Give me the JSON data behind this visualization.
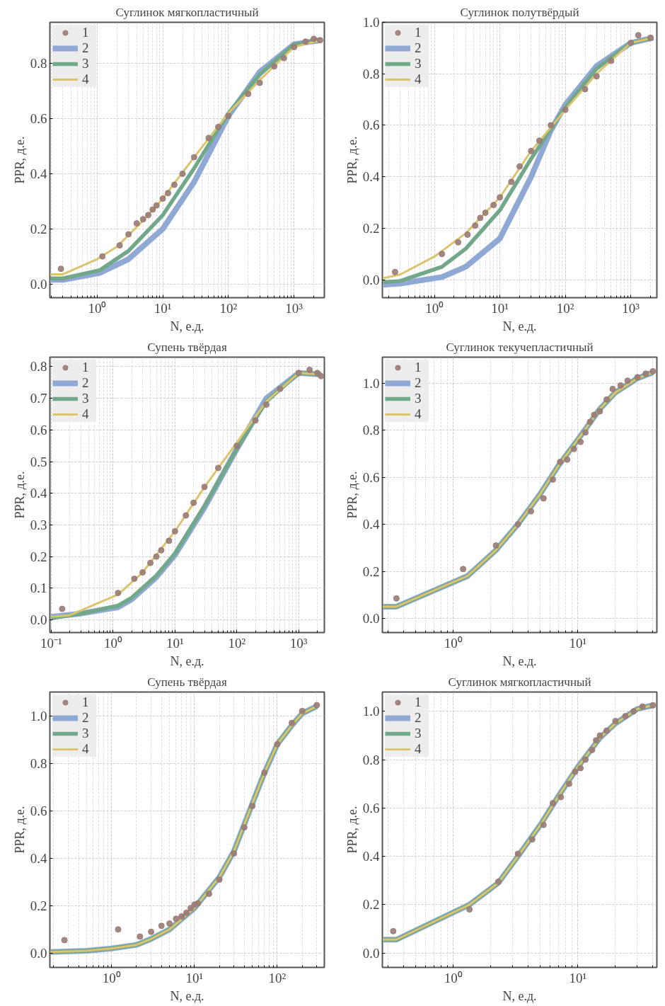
{
  "chart_data": [
    {
      "type": "line",
      "title": "Суглинок мягкопластичный",
      "xlabel": "N, е.д.",
      "ylabel": "PPR, д.е.",
      "log": "x",
      "grid": true,
      "legend": "top left",
      "xlim": [
        0.19,
        2900
      ],
      "ylim": [
        -0.05,
        0.95
      ],
      "xticks": [
        {
          "value": 1,
          "label": "10⁰"
        },
        {
          "value": 10,
          "label": "10¹"
        },
        {
          "value": 100,
          "label": "10²"
        },
        {
          "value": 1000,
          "label": "10³"
        }
      ],
      "yticks": [
        {
          "value": 0,
          "label": "0.0"
        },
        {
          "value": 0.2,
          "label": "0.2"
        },
        {
          "value": 0.4,
          "label": "0.4"
        },
        {
          "value": 0.6,
          "label": "0.6"
        },
        {
          "value": 0.8,
          "label": "0.8"
        }
      ],
      "series": [
        {
          "name": "1",
          "type": "scatter",
          "marker": "circle",
          "color": "#9a7b76",
          "x": [
            0.28,
            1.2,
            2.2,
            3,
            4,
            5,
            6,
            7,
            8,
            10,
            12,
            15,
            20,
            30,
            50,
            70,
            100,
            200,
            300,
            500,
            700,
            1000,
            1500,
            2000,
            2500
          ],
          "values": [
            0.055,
            0.1,
            0.14,
            0.18,
            0.22,
            0.235,
            0.25,
            0.27,
            0.285,
            0.31,
            0.33,
            0.36,
            0.4,
            0.46,
            0.53,
            0.57,
            0.61,
            0.69,
            0.73,
            0.79,
            0.82,
            0.86,
            0.88,
            0.89,
            0.885
          ]
        },
        {
          "name": "2",
          "color": "#8fa8d4",
          "x": [
            0.19,
            0.3,
            1.1,
            3,
            10,
            30,
            100,
            300,
            1000,
            2500
          ],
          "values": [
            0.015,
            0.015,
            0.04,
            0.09,
            0.2,
            0.37,
            0.61,
            0.77,
            0.87,
            0.885
          ]
        },
        {
          "name": "3",
          "color": "#72a88a",
          "x": [
            0.19,
            0.3,
            1.1,
            3,
            10,
            30,
            100,
            300,
            1000,
            2500
          ],
          "values": [
            0.02,
            0.02,
            0.05,
            0.12,
            0.25,
            0.42,
            0.62,
            0.76,
            0.87,
            0.885
          ]
        },
        {
          "name": "4",
          "color": "#dcc46e",
          "x": [
            0.19,
            0.3,
            1,
            2,
            5,
            10,
            30,
            100,
            300,
            1000,
            2500
          ],
          "values": [
            0.035,
            0.035,
            0.09,
            0.135,
            0.23,
            0.31,
            0.46,
            0.62,
            0.74,
            0.86,
            0.885
          ]
        }
      ]
    },
    {
      "type": "line",
      "title": "Суглинок полутвёрдый",
      "xlabel": "N, е.д.",
      "ylabel": "PPR, д.е.",
      "log": "x",
      "grid": true,
      "legend": "top left",
      "xlim": [
        0.16,
        2500
      ],
      "ylim": [
        -0.07,
        1.0
      ],
      "xticks": [
        {
          "value": 1,
          "label": "10⁰"
        },
        {
          "value": 10,
          "label": "10¹"
        },
        {
          "value": 100,
          "label": "10²"
        },
        {
          "value": 1000,
          "label": "10³"
        }
      ],
      "yticks": [
        {
          "value": 0,
          "label": "0.0"
        },
        {
          "value": 0.2,
          "label": "0.2"
        },
        {
          "value": 0.4,
          "label": "0.4"
        },
        {
          "value": 0.6,
          "label": "0.6"
        },
        {
          "value": 0.8,
          "label": "0.8"
        },
        {
          "value": 1.0,
          "label": "1.0"
        }
      ],
      "series": [
        {
          "name": "1",
          "type": "scatter",
          "marker": "circle",
          "color": "#9a7b76",
          "x": [
            0.25,
            1.3,
            2.3,
            3.2,
            4.2,
            5,
            6,
            8,
            10,
            15,
            20,
            30,
            40,
            60,
            100,
            200,
            300,
            500,
            1000,
            1300,
            2000
          ],
          "values": [
            0.03,
            0.1,
            0.145,
            0.175,
            0.21,
            0.24,
            0.26,
            0.29,
            0.32,
            0.38,
            0.44,
            0.5,
            0.54,
            0.6,
            0.66,
            0.74,
            0.79,
            0.85,
            0.92,
            0.95,
            0.94
          ]
        },
        {
          "name": "2",
          "color": "#8fa8d4",
          "x": [
            0.16,
            0.3,
            1.3,
            3,
            10,
            30,
            60,
            100,
            300,
            1000,
            2200
          ],
          "values": [
            -0.02,
            -0.015,
            0.01,
            0.05,
            0.16,
            0.4,
            0.58,
            0.68,
            0.83,
            0.92,
            0.94
          ]
        },
        {
          "name": "3",
          "color": "#72a88a",
          "x": [
            0.16,
            0.3,
            1.3,
            3,
            10,
            30,
            100,
            300,
            1000,
            2200
          ],
          "values": [
            -0.01,
            -0.005,
            0.05,
            0.12,
            0.27,
            0.47,
            0.67,
            0.82,
            0.92,
            0.94
          ]
        },
        {
          "name": "4",
          "color": "#dcc46e",
          "x": [
            0.16,
            0.3,
            1,
            3,
            10,
            30,
            100,
            300,
            1000,
            2200
          ],
          "values": [
            0.005,
            0.02,
            0.09,
            0.18,
            0.32,
            0.5,
            0.66,
            0.8,
            0.92,
            0.94
          ]
        }
      ]
    },
    {
      "type": "line",
      "title": "Супень твёрдая",
      "xlabel": "N, е.д.",
      "ylabel": "PPR, д.е.",
      "log": "x",
      "grid": true,
      "legend": "top left",
      "xlim": [
        0.095,
        2600
      ],
      "ylim": [
        -0.04,
        0.83
      ],
      "xticks": [
        {
          "value": 0.1,
          "label": "10⁻¹"
        },
        {
          "value": 1,
          "label": "10⁰"
        },
        {
          "value": 10,
          "label": "10¹"
        },
        {
          "value": 100,
          "label": "10²"
        },
        {
          "value": 1000,
          "label": "10³"
        }
      ],
      "yticks": [
        {
          "value": 0,
          "label": "0.0"
        },
        {
          "value": 0.1,
          "label": "0.1"
        },
        {
          "value": 0.2,
          "label": "0.2"
        },
        {
          "value": 0.3,
          "label": "0.3"
        },
        {
          "value": 0.4,
          "label": "0.4"
        },
        {
          "value": 0.5,
          "label": "0.5"
        },
        {
          "value": 0.6,
          "label": "0.6"
        },
        {
          "value": 0.7,
          "label": "0.7"
        },
        {
          "value": 0.8,
          "label": "0.8"
        }
      ],
      "series": [
        {
          "name": "1",
          "type": "scatter",
          "marker": "circle",
          "color": "#9a7b76",
          "x": [
            0.15,
            1.2,
            2.2,
            3,
            4,
            5,
            6,
            8,
            10,
            15,
            20,
            30,
            50,
            100,
            200,
            300,
            500,
            1000,
            1500,
            2000,
            2300
          ],
          "values": [
            0.035,
            0.085,
            0.13,
            0.15,
            0.18,
            0.2,
            0.22,
            0.25,
            0.28,
            0.33,
            0.37,
            0.42,
            0.48,
            0.55,
            0.63,
            0.68,
            0.73,
            0.78,
            0.79,
            0.78,
            0.77
          ]
        },
        {
          "name": "2",
          "color": "#8fa8d4",
          "x": [
            0.1,
            0.3,
            1.2,
            2,
            5,
            10,
            30,
            100,
            300,
            1000,
            2300
          ],
          "values": [
            0.01,
            0.02,
            0.04,
            0.065,
            0.135,
            0.205,
            0.355,
            0.54,
            0.7,
            0.78,
            0.775
          ]
        },
        {
          "name": "3",
          "color": "#72a88a",
          "x": [
            0.1,
            0.3,
            1.2,
            2,
            5,
            10,
            30,
            100,
            300,
            1000,
            2300
          ],
          "values": [
            0.005,
            0.02,
            0.045,
            0.07,
            0.14,
            0.21,
            0.36,
            0.54,
            0.69,
            0.78,
            0.775
          ]
        },
        {
          "name": "4",
          "color": "#dcc46e",
          "x": [
            0.1,
            0.2,
            1.2,
            3,
            10,
            30,
            100,
            300,
            1000,
            2300
          ],
          "values": [
            0.01,
            0.015,
            0.08,
            0.15,
            0.28,
            0.42,
            0.56,
            0.69,
            0.78,
            0.775
          ]
        }
      ]
    },
    {
      "type": "line",
      "title": "Суглинок текучепластичный",
      "xlabel": "N, е.д.",
      "ylabel": "PPR, д.е.",
      "log": "x",
      "grid": true,
      "legend": "top left",
      "xlim": [
        0.27,
        43
      ],
      "ylim": [
        -0.06,
        1.11
      ],
      "xticks": [
        {
          "value": 1,
          "label": "10⁰"
        },
        {
          "value": 10,
          "label": "10¹"
        }
      ],
      "yticks": [
        {
          "value": 0,
          "label": "0.0"
        },
        {
          "value": 0.2,
          "label": "0.2"
        },
        {
          "value": 0.4,
          "label": "0.4"
        },
        {
          "value": 0.6,
          "label": "0.6"
        },
        {
          "value": 0.8,
          "label": "0.8"
        },
        {
          "value": 1.0,
          "label": "1.0"
        }
      ],
      "series": [
        {
          "name": "1",
          "type": "scatter",
          "marker": "circle",
          "color": "#9a7b76",
          "x": [
            0.35,
            1.2,
            2.2,
            3.3,
            4.2,
            5.3,
            6.3,
            7.2,
            8.2,
            9.3,
            10.5,
            11.5,
            12.5,
            13.5,
            15,
            17,
            19,
            22,
            25,
            30,
            35,
            40
          ],
          "values": [
            0.085,
            0.21,
            0.31,
            0.4,
            0.455,
            0.51,
            0.59,
            0.665,
            0.675,
            0.72,
            0.75,
            0.79,
            0.835,
            0.865,
            0.88,
            0.93,
            0.975,
            0.99,
            1.01,
            1.025,
            1.04,
            1.05
          ]
        },
        {
          "name": "2",
          "color": "#8fa8d4",
          "x": [
            0.27,
            0.35,
            1.3,
            2.2,
            3.3,
            5,
            7,
            10,
            15,
            20,
            30,
            40
          ],
          "values": [
            0.05,
            0.05,
            0.18,
            0.29,
            0.4,
            0.53,
            0.65,
            0.76,
            0.89,
            0.96,
            1.02,
            1.045
          ]
        },
        {
          "name": "3",
          "color": "#72a88a",
          "x": [
            0.27,
            0.35,
            1.3,
            2.2,
            3.3,
            5,
            7,
            10,
            15,
            20,
            30,
            40
          ],
          "values": [
            0.05,
            0.05,
            0.18,
            0.29,
            0.4,
            0.53,
            0.65,
            0.76,
            0.89,
            0.96,
            1.02,
            1.045
          ]
        },
        {
          "name": "4",
          "color": "#dcc46e",
          "x": [
            0.27,
            0.35,
            1.3,
            2.2,
            3.3,
            5,
            7,
            10,
            15,
            20,
            30,
            40
          ],
          "values": [
            0.05,
            0.05,
            0.18,
            0.29,
            0.4,
            0.53,
            0.65,
            0.76,
            0.89,
            0.96,
            1.02,
            1.045
          ]
        }
      ]
    },
    {
      "type": "line",
      "title": "Супень твёрдая",
      "xlabel": "N, е.д.",
      "ylabel": "PPR, д.е.",
      "log": "x",
      "grid": true,
      "legend": "top left",
      "xlim": [
        0.18,
        370
      ],
      "ylim": [
        -0.06,
        1.1
      ],
      "xticks": [
        {
          "value": 1,
          "label": "10⁰"
        },
        {
          "value": 10,
          "label": "10¹"
        },
        {
          "value": 100,
          "label": "10²"
        }
      ],
      "yticks": [
        {
          "value": 0,
          "label": "0.0"
        },
        {
          "value": 0.2,
          "label": "0.2"
        },
        {
          "value": 0.4,
          "label": "0.4"
        },
        {
          "value": 0.6,
          "label": "0.6"
        },
        {
          "value": 0.8,
          "label": "0.8"
        },
        {
          "value": 1.0,
          "label": "1.0"
        }
      ],
      "series": [
        {
          "name": "1",
          "type": "scatter",
          "marker": "circle",
          "color": "#9a7b76",
          "x": [
            0.27,
            1.2,
            2.2,
            3,
            4,
            5,
            6,
            7,
            8,
            9,
            10,
            11,
            15,
            20,
            30,
            40,
            50,
            70,
            100,
            150,
            200,
            300
          ],
          "values": [
            0.055,
            0.1,
            0.07,
            0.09,
            0.115,
            0.125,
            0.145,
            0.155,
            0.17,
            0.19,
            0.205,
            0.21,
            0.25,
            0.31,
            0.42,
            0.53,
            0.62,
            0.76,
            0.88,
            0.97,
            1.02,
            1.045
          ]
        },
        {
          "name": "2",
          "color": "#8fa8d4",
          "x": [
            0.18,
            0.5,
            1,
            2,
            3,
            5,
            10,
            20,
            30,
            50,
            70,
            100,
            150,
            200,
            300
          ],
          "values": [
            0.005,
            0.01,
            0.02,
            0.035,
            0.06,
            0.1,
            0.19,
            0.32,
            0.43,
            0.63,
            0.76,
            0.88,
            0.96,
            1.01,
            1.04
          ]
        },
        {
          "name": "3",
          "color": "#72a88a",
          "x": [
            0.18,
            0.5,
            1,
            2,
            3,
            5,
            10,
            20,
            30,
            50,
            70,
            100,
            150,
            200,
            300
          ],
          "values": [
            0.005,
            0.01,
            0.02,
            0.035,
            0.06,
            0.1,
            0.19,
            0.32,
            0.43,
            0.63,
            0.76,
            0.88,
            0.96,
            1.01,
            1.04
          ]
        },
        {
          "name": "4",
          "color": "#dcc46e",
          "x": [
            0.18,
            0.5,
            1,
            2,
            3,
            5,
            10,
            20,
            30,
            50,
            70,
            100,
            150,
            200,
            300
          ],
          "values": [
            0.005,
            0.01,
            0.02,
            0.035,
            0.06,
            0.1,
            0.19,
            0.32,
            0.43,
            0.63,
            0.76,
            0.88,
            0.96,
            1.01,
            1.04
          ]
        }
      ]
    },
    {
      "type": "line",
      "title": "Суглинок мягкопластичный",
      "xlabel": "N, е.д.",
      "ylabel": "PPR, д.е.",
      "log": "x",
      "grid": true,
      "legend": "top left",
      "xlim": [
        0.27,
        43
      ],
      "ylim": [
        -0.06,
        1.08
      ],
      "xticks": [
        {
          "value": 1,
          "label": "10⁰"
        },
        {
          "value": 10,
          "label": "10¹"
        }
      ],
      "yticks": [
        {
          "value": 0,
          "label": "0.0"
        },
        {
          "value": 0.2,
          "label": "0.2"
        },
        {
          "value": 0.4,
          "label": "0.4"
        },
        {
          "value": 0.6,
          "label": "0.6"
        },
        {
          "value": 0.8,
          "label": "0.8"
        },
        {
          "value": 1.0,
          "label": "1.0"
        }
      ],
      "series": [
        {
          "name": "1",
          "type": "scatter",
          "marker": "circle",
          "color": "#9a7b76",
          "x": [
            0.33,
            1.35,
            2.3,
            3.3,
            4.3,
            5.3,
            6.3,
            7.3,
            8.5,
            9.5,
            10.5,
            11.5,
            13,
            14,
            15,
            17,
            20,
            24,
            28,
            33,
            40
          ],
          "values": [
            0.09,
            0.18,
            0.295,
            0.41,
            0.47,
            0.53,
            0.62,
            0.645,
            0.7,
            0.75,
            0.765,
            0.8,
            0.84,
            0.88,
            0.9,
            0.92,
            0.96,
            0.98,
            1.0,
            1.02,
            1.025
          ]
        },
        {
          "name": "2",
          "color": "#8fa8d4",
          "x": [
            0.27,
            0.35,
            1.35,
            2.3,
            3.3,
            5,
            7,
            10,
            15,
            20,
            30,
            40
          ],
          "values": [
            0.055,
            0.055,
            0.2,
            0.29,
            0.4,
            0.53,
            0.65,
            0.77,
            0.89,
            0.95,
            1.01,
            1.025
          ]
        },
        {
          "name": "3",
          "color": "#72a88a",
          "x": [
            0.27,
            0.35,
            1.35,
            2.3,
            3.3,
            5,
            7,
            10,
            15,
            20,
            30,
            40
          ],
          "values": [
            0.055,
            0.055,
            0.2,
            0.29,
            0.4,
            0.53,
            0.65,
            0.77,
            0.89,
            0.95,
            1.01,
            1.025
          ]
        },
        {
          "name": "4",
          "color": "#dcc46e",
          "x": [
            0.27,
            0.35,
            1.35,
            2.3,
            3.3,
            5,
            7,
            10,
            15,
            20,
            30,
            40
          ],
          "values": [
            0.055,
            0.055,
            0.2,
            0.29,
            0.4,
            0.53,
            0.65,
            0.77,
            0.89,
            0.95,
            1.01,
            1.025
          ]
        }
      ]
    }
  ]
}
